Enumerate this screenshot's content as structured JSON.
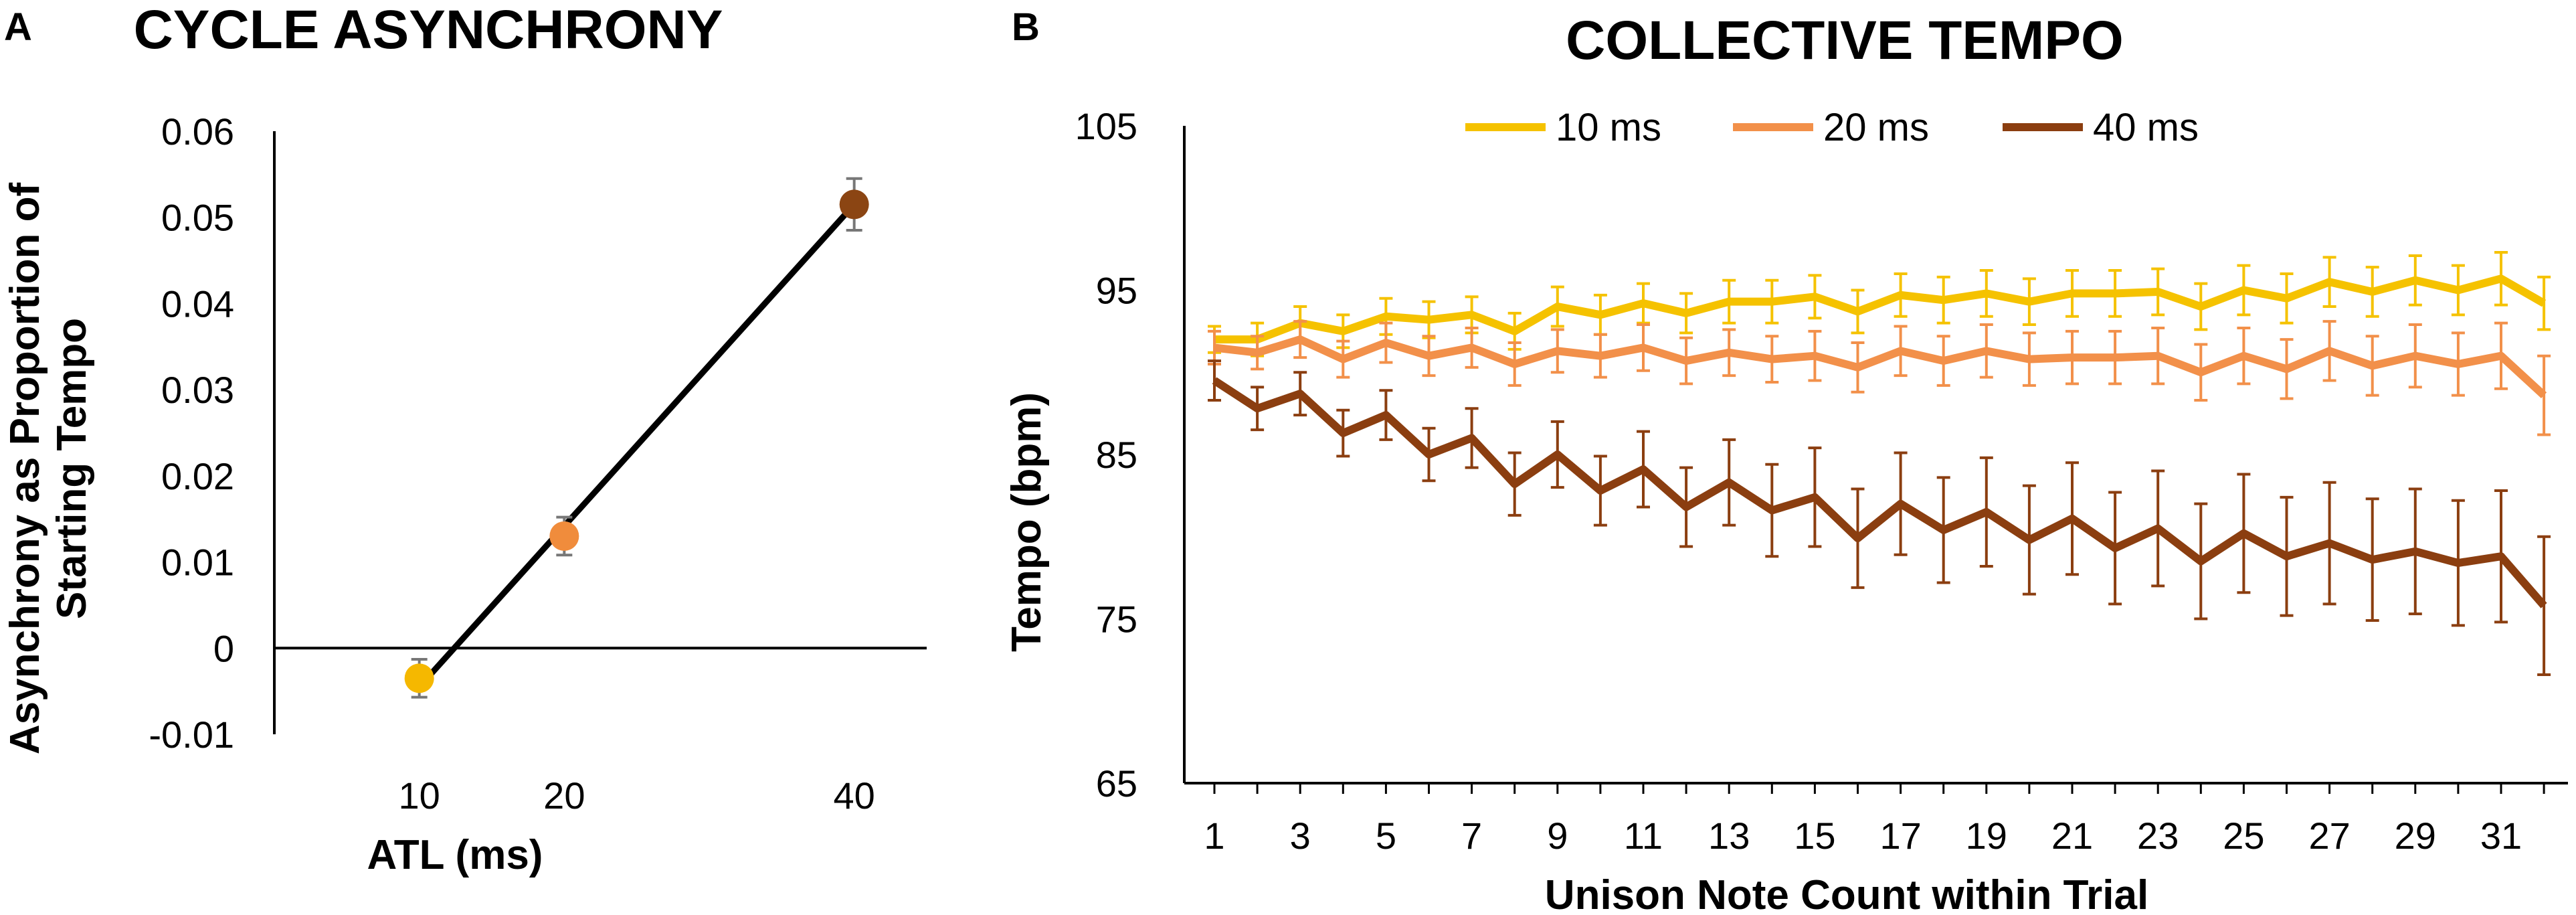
{
  "chart_data": [
    {
      "panel": "A",
      "type": "scatter",
      "title": "CYCLE ASYNCHRONY",
      "xlabel": "ATL (ms)",
      "ylabel_lines": [
        "Asynchrony as Proportion of",
        "Starting Tempo"
      ],
      "x_ticks": [
        "10",
        "20",
        "40"
      ],
      "y_ticks": [
        "0.06",
        "0.05",
        "0.04",
        "0.03",
        "0.02",
        "0.01",
        "0",
        "-0.01"
      ],
      "ylim": [
        -0.01,
        0.06
      ],
      "xlim": [
        0,
        45
      ],
      "points": [
        {
          "x": 10,
          "y": -0.0035,
          "err": 0.0022,
          "color": "#F5B800"
        },
        {
          "x": 20,
          "y": 0.013,
          "err": 0.0022,
          "color": "#F08C3C"
        },
        {
          "x": 40,
          "y": 0.0515,
          "err": 0.003,
          "color": "#8B4513"
        }
      ],
      "trendline": {
        "x": [
          10,
          40
        ],
        "y": [
          -0.0045,
          0.0515
        ],
        "color": "#000000"
      }
    },
    {
      "panel": "B",
      "type": "line",
      "title": "COLLECTIVE TEMPO",
      "xlabel": "Unison Note Count within Trial",
      "ylabel": "Tempo (bpm)",
      "y_ticks": [
        "105",
        "95",
        "85",
        "75",
        "65"
      ],
      "ylim": [
        65,
        105
      ],
      "x_ticks": [
        "1",
        "3",
        "5",
        "7",
        "9",
        "11",
        "13",
        "15",
        "17",
        "19",
        "21",
        "23",
        "25",
        "27",
        "29",
        "31"
      ],
      "x": [
        1,
        2,
        3,
        4,
        5,
        6,
        7,
        8,
        9,
        10,
        11,
        12,
        13,
        14,
        15,
        16,
        17,
        18,
        19,
        20,
        21,
        22,
        23,
        24,
        25,
        26,
        27,
        28,
        29,
        30,
        31,
        32
      ],
      "legend": [
        "10 ms",
        "20 ms",
        "40 ms"
      ],
      "series": [
        {
          "name": "10 ms",
          "color": "#F5C200",
          "values": [
            92.0,
            92.0,
            93.0,
            92.5,
            93.4,
            93.2,
            93.5,
            92.5,
            94.0,
            93.5,
            94.2,
            93.6,
            94.3,
            94.3,
            94.6,
            93.7,
            94.7,
            94.4,
            94.8,
            94.3,
            94.8,
            94.8,
            94.9,
            94.0,
            95.0,
            94.5,
            95.5,
            94.9,
            95.6,
            95.0,
            95.7,
            94.2
          ],
          "errors": [
            0.8,
            1.0,
            1.0,
            1.0,
            1.1,
            1.1,
            1.1,
            1.1,
            1.2,
            1.2,
            1.2,
            1.2,
            1.3,
            1.3,
            1.3,
            1.3,
            1.3,
            1.4,
            1.4,
            1.4,
            1.4,
            1.4,
            1.4,
            1.4,
            1.5,
            1.5,
            1.5,
            1.5,
            1.5,
            1.5,
            1.6,
            1.6
          ]
        },
        {
          "name": "20 ms",
          "color": "#F2904A",
          "values": [
            91.5,
            91.2,
            92.0,
            90.8,
            91.8,
            91.0,
            91.5,
            90.5,
            91.3,
            91.0,
            91.5,
            90.7,
            91.2,
            90.8,
            91.0,
            90.3,
            91.3,
            90.7,
            91.3,
            90.8,
            90.9,
            90.9,
            91.0,
            90.0,
            91.0,
            90.2,
            91.3,
            90.4,
            91.0,
            90.5,
            91.0,
            88.6
          ],
          "errors": [
            1.0,
            1.0,
            1.1,
            1.1,
            1.2,
            1.2,
            1.2,
            1.3,
            1.3,
            1.3,
            1.4,
            1.4,
            1.4,
            1.4,
            1.5,
            1.5,
            1.5,
            1.5,
            1.6,
            1.6,
            1.6,
            1.6,
            1.7,
            1.7,
            1.7,
            1.8,
            1.8,
            1.8,
            1.9,
            1.9,
            2.0,
            2.4
          ]
        },
        {
          "name": "40 ms",
          "color": "#8B3E10",
          "values": [
            89.5,
            87.8,
            88.7,
            86.3,
            87.4,
            85.0,
            86.0,
            83.2,
            85.0,
            82.8,
            84.1,
            81.8,
            83.3,
            81.6,
            82.4,
            79.9,
            82.0,
            80.4,
            81.5,
            79.8,
            81.1,
            79.3,
            80.5,
            78.5,
            80.2,
            78.8,
            79.6,
            78.6,
            79.1,
            78.4,
            78.8,
            75.8
          ],
          "errors": [
            1.2,
            1.3,
            1.3,
            1.4,
            1.5,
            1.6,
            1.8,
            1.9,
            2.0,
            2.1,
            2.3,
            2.4,
            2.6,
            2.8,
            3.0,
            3.0,
            3.1,
            3.2,
            3.3,
            3.3,
            3.4,
            3.4,
            3.5,
            3.5,
            3.6,
            3.6,
            3.7,
            3.7,
            3.8,
            3.8,
            4.0,
            4.2
          ]
        }
      ]
    }
  ]
}
